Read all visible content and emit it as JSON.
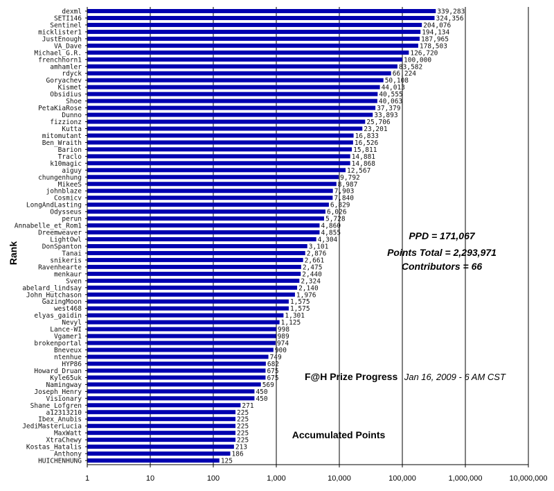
{
  "chart_data": {
    "type": "bar",
    "orientation": "horizontal",
    "x_scale": "log",
    "xlim": [
      1,
      10000000
    ],
    "x_ticks": [
      "1",
      "10",
      "100",
      "1,000",
      "10,000",
      "100,000",
      "1,000,000",
      "10,000,000"
    ],
    "ylabel": "Rank",
    "grid": "vertical",
    "bar_color": "#0000b0",
    "categories": [
      "dexml",
      "SETI146",
      "Sentinel",
      "micklister1",
      "JustEnough",
      "VA_Dave",
      "Michael_G.R.",
      "frenchhorn1",
      "amhamler",
      "rdyck",
      "Goryachev",
      "Kismet",
      "Obsidius",
      "Shoe",
      "PetaKiaRose",
      "Dunno",
      "fizzionz",
      "Kutta",
      "mitomutant",
      "Ben_Wraith",
      "Barion",
      "Traclo",
      "k10magic",
      "aiguy",
      "chungenhung",
      "MikeeS",
      "johnblaze",
      "Cosmicv",
      "LongAndLasting",
      "Odysseus",
      "perun",
      "Annabelle_et_Rom1",
      "Dreemweaver",
      "LightOwl",
      "DonSpanton",
      "Tanai",
      "snikeris",
      "Ravenhearte",
      "menkaur",
      "Sven",
      "abelard_lindsay",
      "John_Hutchason",
      "GazingMoon",
      "west468",
      "elyas_gaidin",
      "Nevyl",
      "Lance-WI",
      "Vgamer1",
      "brokenportal",
      "Bneveux",
      "ntenhue",
      "HYP86",
      "Howard_Druan",
      "Kyle65uk",
      "Namingway",
      "Joseph_Henry",
      "Visionary",
      "Shane_Lofgren",
      "a12313210",
      "Ibex_Anubis",
      "JediMasterLucia",
      "MaxWatt",
      "XtraChewy",
      "Kostas_Hatalis",
      "Anthony",
      "HUICHENHUNG"
    ],
    "values": [
      339283,
      324356,
      204076,
      194134,
      187965,
      178503,
      126720,
      100000,
      83582,
      66224,
      50108,
      44013,
      40555,
      40063,
      37379,
      33893,
      25706,
      23201,
      16833,
      16526,
      15811,
      14881,
      14868,
      12567,
      9792,
      8987,
      7903,
      7840,
      6829,
      6026,
      5728,
      4860,
      4855,
      4304,
      3101,
      2876,
      2661,
      2475,
      2440,
      2324,
      2140,
      1976,
      1575,
      1575,
      1301,
      1125,
      998,
      989,
      974,
      900,
      749,
      682,
      675,
      675,
      569,
      450,
      450,
      271,
      225,
      225,
      225,
      225,
      225,
      213,
      186,
      125
    ],
    "value_labels": [
      "339,283",
      "324,356",
      "204,076",
      "194,134",
      "187,965",
      "178,503",
      "126,720",
      "100,000",
      "83,582",
      "66,224",
      "50,108",
      "44,013",
      "40,555",
      "40,063",
      "37,379",
      "33,893",
      "25,706",
      "23,201",
      "16,833",
      "16,526",
      "15,811",
      "14,881",
      "14,868",
      "12,567",
      "9,792",
      "8,987",
      "7,903",
      "7,840",
      "6,829",
      "6,026",
      "5,728",
      "4,860",
      "4,855",
      "4,304",
      "3,101",
      "2,876",
      "2,661",
      "2,475",
      "2,440",
      "2,324",
      "2,140",
      "1,976",
      "1,575",
      "1,575",
      "1,301",
      "1,125",
      "998",
      "989",
      "974",
      "900",
      "749",
      "682",
      "675",
      "675",
      "569",
      "450",
      "450",
      "271",
      "225",
      "225",
      "225",
      "225",
      "225",
      "213",
      "186",
      "125"
    ]
  },
  "annotations": {
    "stats": [
      "PPD = 171,067",
      "Points Total = 2,293,971",
      "Contributors = 66"
    ],
    "title_bold": "F@H Prize Progress",
    "title_date": "Jan 16, 2009 - 6 AM CST",
    "accumulated": "Accumulated Points"
  }
}
